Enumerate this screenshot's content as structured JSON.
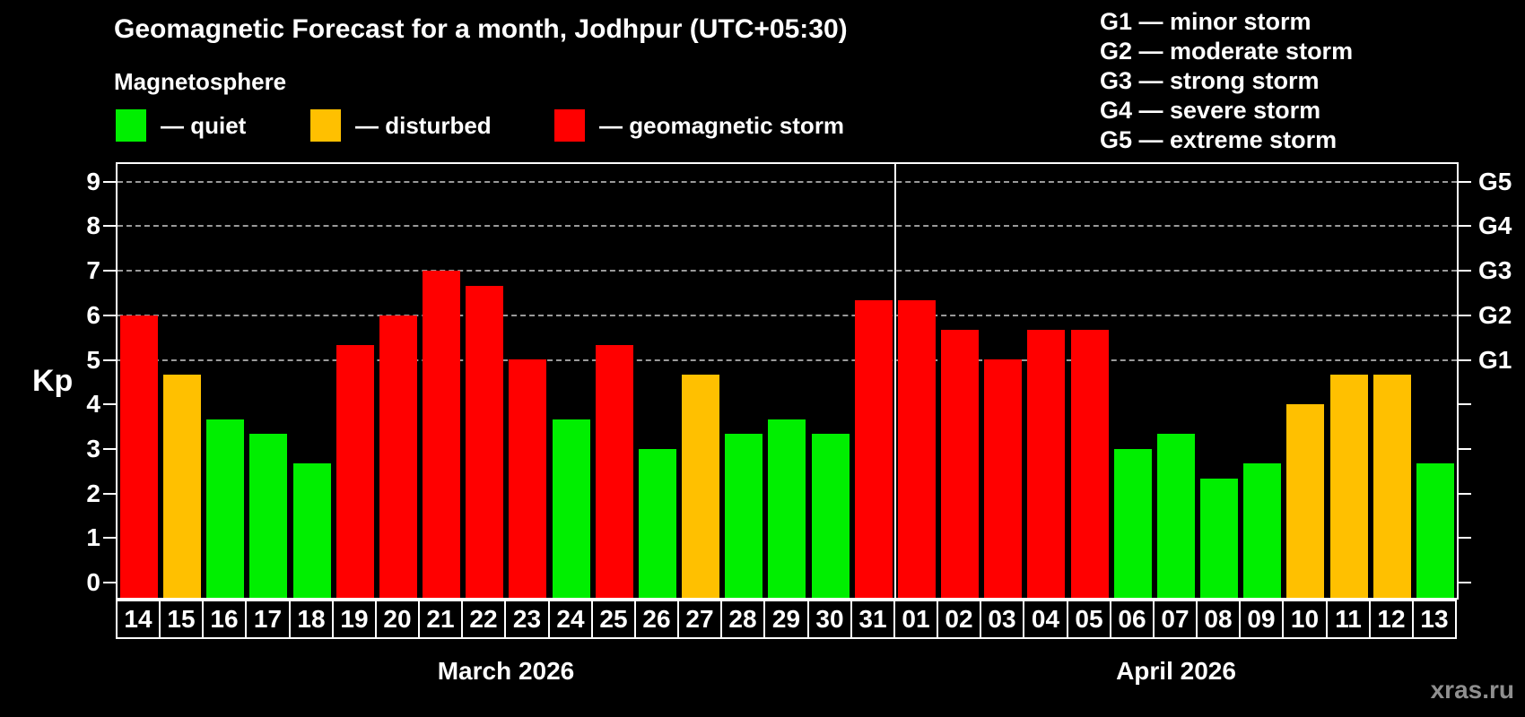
{
  "header": {
    "title": "Geomagnetic Forecast for a month, Jodhpur (UTC+05:30)",
    "subtitle": "Magnetosphere"
  },
  "legend": [
    {
      "key": "quiet",
      "label": "— quiet"
    },
    {
      "key": "disturbed",
      "label": "— disturbed"
    },
    {
      "key": "storm",
      "label": "— geomagnetic storm"
    }
  ],
  "g_legend": [
    "G1 — minor storm",
    "G2 — moderate storm",
    "G3 — strong storm",
    "G4 — severe storm",
    "G5 — extreme storm"
  ],
  "colors": {
    "quiet": "#00ef00",
    "disturbed": "#ffc000",
    "storm": "#ff0000",
    "gridline": "#9a9a9a",
    "axis": "#ffffff",
    "watermark": "#8f8f8f"
  },
  "axis": {
    "y_label": "Kp",
    "y_ticks": [
      0,
      1,
      2,
      3,
      4,
      5,
      6,
      7,
      8,
      9
    ],
    "right_labels": {
      "5": "G1",
      "6": "G2",
      "7": "G3",
      "8": "G4",
      "9": "G5"
    }
  },
  "months": [
    {
      "label": "March 2026",
      "days": 18
    },
    {
      "label": "April 2026",
      "days": 13
    }
  ],
  "watermark": "xras.ru",
  "chart_data": {
    "type": "bar",
    "title": "Geomagnetic Forecast for a month, Jodhpur (UTC+05:30)",
    "ylabel": "Kp",
    "ylim": [
      0,
      9
    ],
    "grid": "dashed horizontal at Kp 5-9 (G1-G5)",
    "legend_position": "top-left",
    "categories": [
      "14",
      "15",
      "16",
      "17",
      "18",
      "19",
      "20",
      "21",
      "22",
      "23",
      "24",
      "25",
      "26",
      "27",
      "28",
      "29",
      "30",
      "31",
      "01",
      "02",
      "03",
      "04",
      "05",
      "06",
      "07",
      "08",
      "09",
      "10",
      "11",
      "12",
      "13"
    ],
    "values": [
      6.0,
      4.67,
      3.67,
      3.33,
      2.67,
      5.33,
      6.0,
      7.0,
      6.67,
      5.0,
      3.67,
      5.33,
      3.0,
      4.67,
      3.33,
      3.67,
      3.33,
      6.33,
      6.33,
      5.67,
      5.0,
      5.67,
      5.67,
      3.0,
      3.33,
      2.33,
      2.67,
      4.0,
      4.67,
      4.67,
      2.67
    ],
    "statuses": [
      "storm",
      "disturbed",
      "quiet",
      "quiet",
      "quiet",
      "storm",
      "storm",
      "storm",
      "storm",
      "storm",
      "quiet",
      "storm",
      "quiet",
      "disturbed",
      "quiet",
      "quiet",
      "quiet",
      "storm",
      "storm",
      "storm",
      "storm",
      "storm",
      "storm",
      "quiet",
      "quiet",
      "quiet",
      "quiet",
      "disturbed",
      "disturbed",
      "disturbed",
      "quiet"
    ]
  }
}
